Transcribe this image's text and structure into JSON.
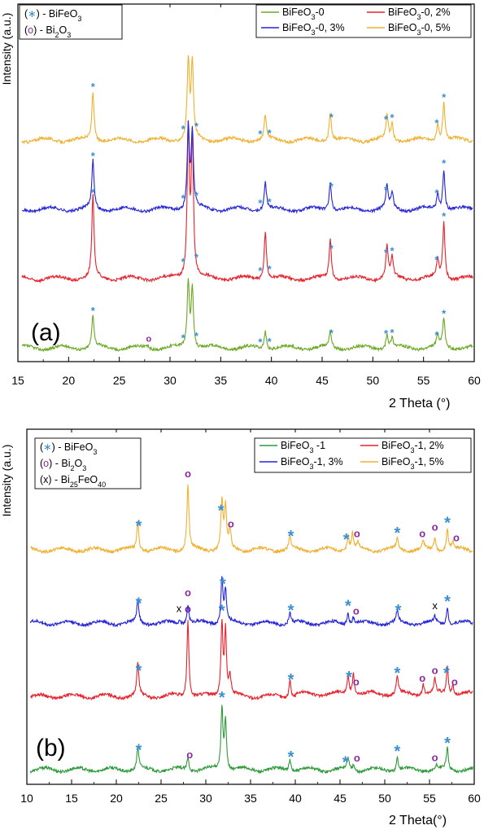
{
  "chart_data": [
    {
      "type": "line",
      "panel_label": "(a)",
      "xlabel": "2 Theta (°)",
      "ylabel": "Intensity (a.u.)",
      "xlim": [
        15,
        60
      ],
      "xticks": [
        15,
        20,
        25,
        30,
        35,
        40,
        45,
        50,
        55,
        60
      ],
      "yticks": false,
      "grid": false,
      "legend_placement": "top-right",
      "phase_key": [
        {
          "symbol": "*",
          "label": "(∗) - BiFeO₃",
          "color": "#3a8fd0"
        },
        {
          "symbol": "o",
          "label": "(o) - Bi₂O₃",
          "color": "#8a2a9a"
        }
      ],
      "series": [
        {
          "name": "BiFeO₃-0",
          "color": "#6aa823",
          "offset": 0,
          "peaks": [
            [
              22.4,
              0.2
            ],
            [
              27.8,
              0.012
            ],
            [
              31.8,
              0.4
            ],
            [
              32.2,
              0.36
            ],
            [
              39.4,
              0.11
            ],
            [
              45.8,
              0.1
            ],
            [
              51.4,
              0.09
            ],
            [
              51.9,
              0.06
            ],
            [
              56.4,
              0.07
            ],
            [
              57.0,
              0.18
            ]
          ],
          "markers": [
            {
              "x": 22.4,
              "sym": "*"
            },
            {
              "x": 27.9,
              "sym": "o"
            },
            {
              "x": 31.3,
              "sym": "*"
            },
            {
              "x": 32.6,
              "sym": "*"
            },
            {
              "x": 38.9,
              "sym": "*"
            },
            {
              "x": 39.8,
              "sym": "*"
            },
            {
              "x": 45.9,
              "sym": "*"
            },
            {
              "x": 51.3,
              "sym": "*"
            },
            {
              "x": 51.9,
              "sym": "*"
            },
            {
              "x": 56.3,
              "sym": "*"
            },
            {
              "x": 57.0,
              "sym": "*"
            }
          ]
        },
        {
          "name": "BiFeO₃-0, 2%",
          "color": "#e8202a",
          "offset": 1,
          "peaks": [
            [
              22.4,
              0.5
            ],
            [
              31.8,
              0.9
            ],
            [
              32.2,
              0.84
            ],
            [
              39.4,
              0.3
            ],
            [
              45.8,
              0.25
            ],
            [
              51.4,
              0.2
            ],
            [
              51.9,
              0.13
            ],
            [
              56.4,
              0.12
            ],
            [
              57.0,
              0.35
            ]
          ],
          "markers": [
            {
              "x": 22.4,
              "sym": "*"
            },
            {
              "x": 31.3,
              "sym": "*"
            },
            {
              "x": 32.6,
              "sym": "*"
            },
            {
              "x": 38.9,
              "sym": "*"
            },
            {
              "x": 39.8,
              "sym": "*"
            },
            {
              "x": 45.9,
              "sym": "*"
            },
            {
              "x": 51.3,
              "sym": "*"
            },
            {
              "x": 51.9,
              "sym": "*"
            },
            {
              "x": 56.3,
              "sym": "*"
            },
            {
              "x": 57.0,
              "sym": "*"
            }
          ]
        },
        {
          "name": "BiFeO₃-0, 3%",
          "color": "#2424d8",
          "offset": 2,
          "peaks": [
            [
              22.4,
              0.3
            ],
            [
              31.8,
              0.5
            ],
            [
              32.2,
              0.46
            ],
            [
              39.4,
              0.17
            ],
            [
              45.8,
              0.18
            ],
            [
              51.4,
              0.14
            ],
            [
              51.9,
              0.1
            ],
            [
              56.4,
              0.1
            ],
            [
              57.0,
              0.25
            ]
          ],
          "markers": [
            {
              "x": 22.4,
              "sym": "*"
            },
            {
              "x": 31.3,
              "sym": "*"
            },
            {
              "x": 32.6,
              "sym": "*"
            },
            {
              "x": 38.9,
              "sym": "*"
            },
            {
              "x": 39.8,
              "sym": "*"
            },
            {
              "x": 45.9,
              "sym": "*"
            },
            {
              "x": 51.3,
              "sym": "*"
            },
            {
              "x": 56.3,
              "sym": "*"
            },
            {
              "x": 57.0,
              "sym": "*"
            }
          ]
        },
        {
          "name": "BiFeO₃-0, 5%",
          "color": "#f0b030",
          "offset": 3,
          "peaks": [
            [
              22.4,
              0.3
            ],
            [
              31.8,
              0.48
            ],
            [
              32.2,
              0.46
            ],
            [
              39.4,
              0.15
            ],
            [
              45.8,
              0.18
            ],
            [
              51.4,
              0.15
            ],
            [
              51.9,
              0.1
            ],
            [
              56.4,
              0.11
            ],
            [
              57.0,
              0.23
            ]
          ],
          "markers": [
            {
              "x": 22.4,
              "sym": "*"
            },
            {
              "x": 31.3,
              "sym": "*"
            },
            {
              "x": 32.6,
              "sym": "*"
            },
            {
              "x": 38.9,
              "sym": "*"
            },
            {
              "x": 39.8,
              "sym": "*"
            },
            {
              "x": 45.9,
              "sym": "*"
            },
            {
              "x": 51.3,
              "sym": "*"
            },
            {
              "x": 51.9,
              "sym": "*"
            },
            {
              "x": 56.3,
              "sym": "*"
            },
            {
              "x": 57.0,
              "sym": "*"
            }
          ]
        }
      ]
    },
    {
      "type": "line",
      "panel_label": "(b)",
      "xlabel": "2 Theta(°)",
      "ylabel": "Intensity (a.u.)",
      "xlim": [
        10,
        60
      ],
      "xticks": [
        10,
        15,
        20,
        25,
        30,
        35,
        40,
        45,
        50,
        55,
        60
      ],
      "yticks": false,
      "grid": false,
      "legend_placement": "top-right",
      "phase_key": [
        {
          "symbol": "*",
          "label": "(∗) - BiFeO₃",
          "color": "#3a8fd0"
        },
        {
          "symbol": "o",
          "label": "(o) - Bi₂O₃",
          "color": "#8a2a9a"
        },
        {
          "symbol": "x",
          "label": "(x) - Bi₂₅FeO₄₀",
          "color": "#000000"
        }
      ],
      "series": [
        {
          "name": "BiFeO₃ -1",
          "color": "#2e9a3a",
          "offset": 0,
          "peaks": [
            [
              22.4,
              0.14
            ],
            [
              28.0,
              0.08
            ],
            [
              31.8,
              0.38
            ],
            [
              32.2,
              0.3
            ],
            [
              39.4,
              0.07
            ],
            [
              45.9,
              0.07
            ],
            [
              46.5,
              0.03
            ],
            [
              51.4,
              0.08
            ],
            [
              55.8,
              0.02
            ],
            [
              57.0,
              0.13
            ]
          ],
          "markers": [
            {
              "x": 22.5,
              "sym": "*"
            },
            {
              "x": 28.2,
              "sym": "o"
            },
            {
              "x": 31.8,
              "sym": "*"
            },
            {
              "x": 39.5,
              "sym": "*"
            },
            {
              "x": 45.6,
              "sym": "*"
            },
            {
              "x": 46.9,
              "sym": "o"
            },
            {
              "x": 51.4,
              "sym": "*"
            },
            {
              "x": 55.6,
              "sym": "o"
            },
            {
              "x": 57.0,
              "sym": "*"
            }
          ]
        },
        {
          "name": "BiFeO₃-1, 2%",
          "color": "#e8202a",
          "offset": 1,
          "peaks": [
            [
              22.4,
              0.2
            ],
            [
              28.0,
              0.47
            ],
            [
              31.8,
              0.45
            ],
            [
              32.2,
              0.4
            ],
            [
              32.7,
              0.12
            ],
            [
              39.4,
              0.11
            ],
            [
              45.9,
              0.12
            ],
            [
              46.5,
              0.13
            ],
            [
              51.4,
              0.11
            ],
            [
              54.3,
              0.07
            ],
            [
              55.6,
              0.09
            ],
            [
              57.0,
              0.17
            ],
            [
              57.6,
              0.06
            ]
          ],
          "markers": [
            {
              "x": 22.5,
              "sym": "*"
            },
            {
              "x": 28.0,
              "sym": "o"
            },
            {
              "x": 31.8,
              "sym": "*"
            },
            {
              "x": 39.5,
              "sym": "*"
            },
            {
              "x": 46.0,
              "sym": "*"
            },
            {
              "x": 46.8,
              "sym": "o"
            },
            {
              "x": 51.4,
              "sym": "*"
            },
            {
              "x": 54.2,
              "sym": "o"
            },
            {
              "x": 55.6,
              "sym": "o"
            },
            {
              "x": 56.9,
              "sym": "*"
            },
            {
              "x": 57.8,
              "sym": "o"
            }
          ]
        },
        {
          "name": "BiFeO₃-1, 3%",
          "color": "#2424d8",
          "offset": 2,
          "peaks": [
            [
              22.4,
              0.14
            ],
            [
              27.1,
              0.03
            ],
            [
              28.0,
              0.12
            ],
            [
              31.8,
              0.28
            ],
            [
              32.2,
              0.2
            ],
            [
              39.4,
              0.07
            ],
            [
              45.9,
              0.07
            ],
            [
              46.5,
              0.04
            ],
            [
              51.4,
              0.07
            ],
            [
              55.6,
              0.04
            ],
            [
              57.0,
              0.1
            ]
          ],
          "markers": [
            {
              "x": 22.5,
              "sym": "*"
            },
            {
              "x": 27.0,
              "sym": "x"
            },
            {
              "x": 28.0,
              "sym": "o"
            },
            {
              "x": 31.9,
              "sym": "*"
            },
            {
              "x": 39.5,
              "sym": "*"
            },
            {
              "x": 45.9,
              "sym": "*"
            },
            {
              "x": 46.8,
              "sym": "o"
            },
            {
              "x": 51.5,
              "sym": "*"
            },
            {
              "x": 55.6,
              "sym": "x"
            },
            {
              "x": 57.0,
              "sym": "*"
            }
          ]
        },
        {
          "name": "BiFeO₃-1, 5%",
          "color": "#f0b030",
          "offset": 3,
          "peaks": [
            [
              22.4,
              0.18
            ],
            [
              28.0,
              0.4
            ],
            [
              31.8,
              0.3
            ],
            [
              32.2,
              0.26
            ],
            [
              32.7,
              0.12
            ],
            [
              39.4,
              0.08
            ],
            [
              45.9,
              0.09
            ],
            [
              46.4,
              0.1
            ],
            [
              47.0,
              0.04
            ],
            [
              51.4,
              0.07
            ],
            [
              54.3,
              0.05
            ],
            [
              55.6,
              0.07
            ],
            [
              57.0,
              0.13
            ],
            [
              57.6,
              0.05
            ]
          ],
          "markers": [
            {
              "x": 22.5,
              "sym": "*"
            },
            {
              "x": 28.0,
              "sym": "o"
            },
            {
              "x": 31.7,
              "sym": "*"
            },
            {
              "x": 32.8,
              "sym": "o"
            },
            {
              "x": 39.5,
              "sym": "*"
            },
            {
              "x": 45.7,
              "sym": "*"
            },
            {
              "x": 46.9,
              "sym": "o"
            },
            {
              "x": 51.4,
              "sym": "*"
            },
            {
              "x": 54.2,
              "sym": "o"
            },
            {
              "x": 55.6,
              "sym": "o"
            },
            {
              "x": 57.0,
              "sym": "*"
            },
            {
              "x": 58.0,
              "sym": "o"
            }
          ]
        }
      ]
    }
  ]
}
